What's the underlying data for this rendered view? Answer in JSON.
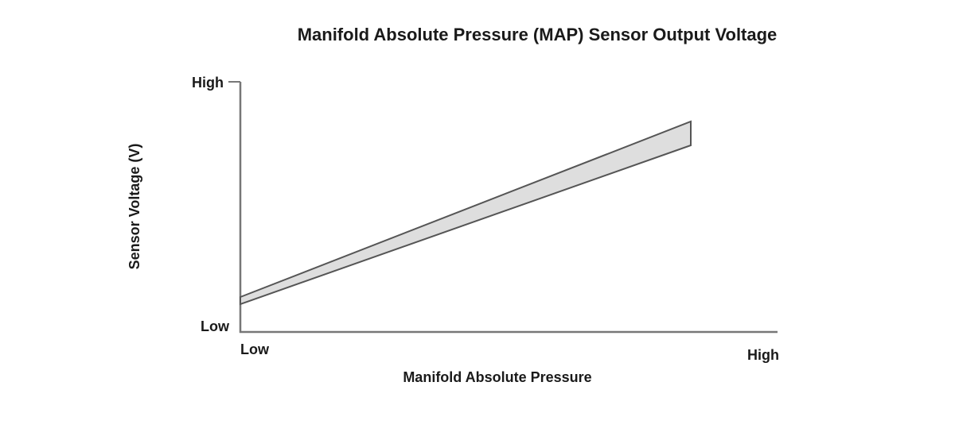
{
  "title": "Manifold Absolute Pressure (MAP) Sensor Output Voltage",
  "y_axis": {
    "label": "Sensor Voltage (V)",
    "high": "High",
    "low": "Low"
  },
  "x_axis": {
    "label": "Manifold Absolute Pressure",
    "low": "Low",
    "high": "High"
  }
}
